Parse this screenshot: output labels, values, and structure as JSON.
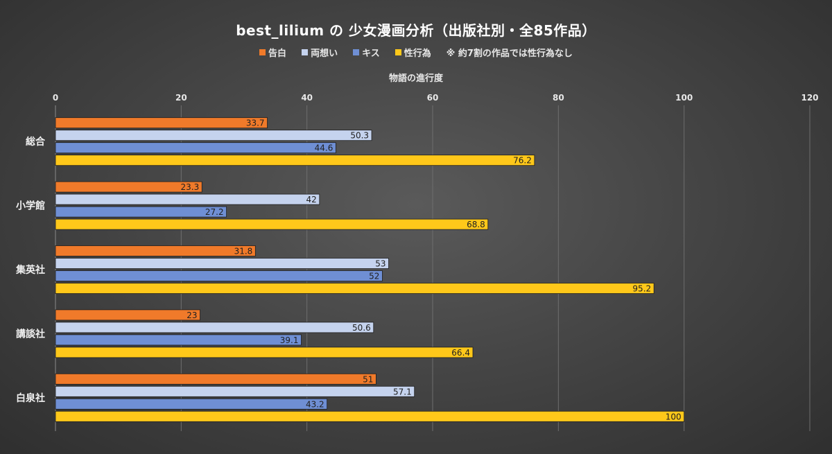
{
  "chart_data": {
    "type": "bar",
    "orientation": "horizontal",
    "title": "best_lilium の 少女漫画分析（出版社別・全85作品）",
    "xlabel": "物語の進行度",
    "xlim": [
      0,
      120
    ],
    "xticks": [
      0,
      20,
      40,
      60,
      80,
      100,
      120
    ],
    "grid": true,
    "legend_position": "top",
    "legend_note": "※ 約7割の作品では性行為なし",
    "categories": [
      "総合",
      "小学館",
      "集英社",
      "講談社",
      "白泉社"
    ],
    "series": [
      {
        "name": "告白",
        "color": "#f07a2a",
        "values": [
          33.7,
          23.3,
          31.8,
          23,
          51
        ]
      },
      {
        "name": "両想い",
        "color": "#c5d3ee",
        "values": [
          50.3,
          42,
          53,
          50.6,
          57.1
        ]
      },
      {
        "name": "キス",
        "color": "#6f8fd4",
        "values": [
          44.6,
          27.2,
          52,
          39.1,
          43.2
        ]
      },
      {
        "name": "性行為",
        "color": "#ffc81a",
        "values": [
          76.2,
          68.8,
          95.2,
          66.4,
          100
        ]
      }
    ]
  }
}
